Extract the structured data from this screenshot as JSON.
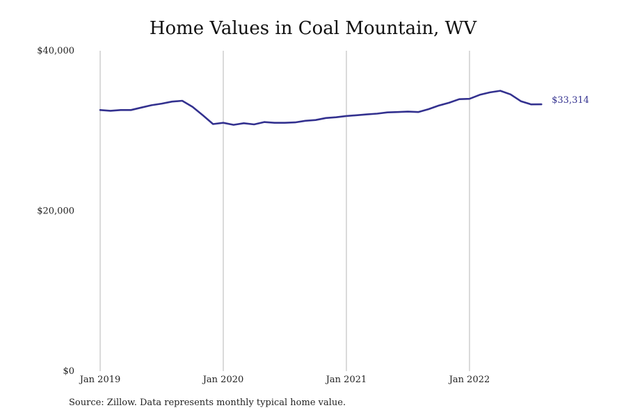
{
  "source_note": "Source: Zillow. Data represents monthly typical home value.",
  "chart_data": {
    "type": "line",
    "title": "Home Values in Coal Mountain, WV",
    "xlabel": "",
    "ylabel": "",
    "ylim": [
      0,
      40000
    ],
    "y_ticks": [
      {
        "value": 0,
        "label": "$0"
      },
      {
        "value": 20000,
        "label": "$20,000"
      },
      {
        "value": 40000,
        "label": "$40,000"
      }
    ],
    "x_ticks": [
      {
        "date": "2019-01",
        "label": "Jan 2019"
      },
      {
        "date": "2020-01",
        "label": "Jan 2020"
      },
      {
        "date": "2021-01",
        "label": "Jan 2021"
      },
      {
        "date": "2022-01",
        "label": "Jan 2022"
      }
    ],
    "vertical_gridlines": true,
    "horizontal_gridlines": false,
    "line_color": "#33318f",
    "end_label": "$33,314",
    "series": [
      {
        "x": [
          "2019-01",
          "2019-02",
          "2019-03",
          "2019-04",
          "2019-05",
          "2019-06",
          "2019-07",
          "2019-08",
          "2019-09",
          "2019-10",
          "2019-11",
          "2019-12",
          "2020-01",
          "2020-02",
          "2020-03",
          "2020-04",
          "2020-05",
          "2020-06",
          "2020-07",
          "2020-08",
          "2020-09",
          "2020-10",
          "2020-11",
          "2020-12",
          "2021-01",
          "2021-02",
          "2021-03",
          "2021-04",
          "2021-05",
          "2021-06",
          "2021-07",
          "2021-08",
          "2021-09",
          "2021-10",
          "2021-11",
          "2021-12",
          "2022-01",
          "2022-02",
          "2022-03",
          "2022-04",
          "2022-05",
          "2022-06",
          "2022-07",
          "2022-08"
        ],
        "values": [
          32600,
          32500,
          32600,
          32600,
          32900,
          33200,
          33400,
          33650,
          33750,
          33000,
          31950,
          30850,
          31000,
          30750,
          30950,
          30800,
          31100,
          31000,
          31000,
          31050,
          31250,
          31350,
          31600,
          31700,
          31850,
          31950,
          32050,
          32150,
          32300,
          32350,
          32400,
          32350,
          32700,
          33150,
          33500,
          33950,
          34000,
          34500,
          34800,
          35000,
          34550,
          33700,
          33300,
          33314
        ]
      }
    ]
  }
}
